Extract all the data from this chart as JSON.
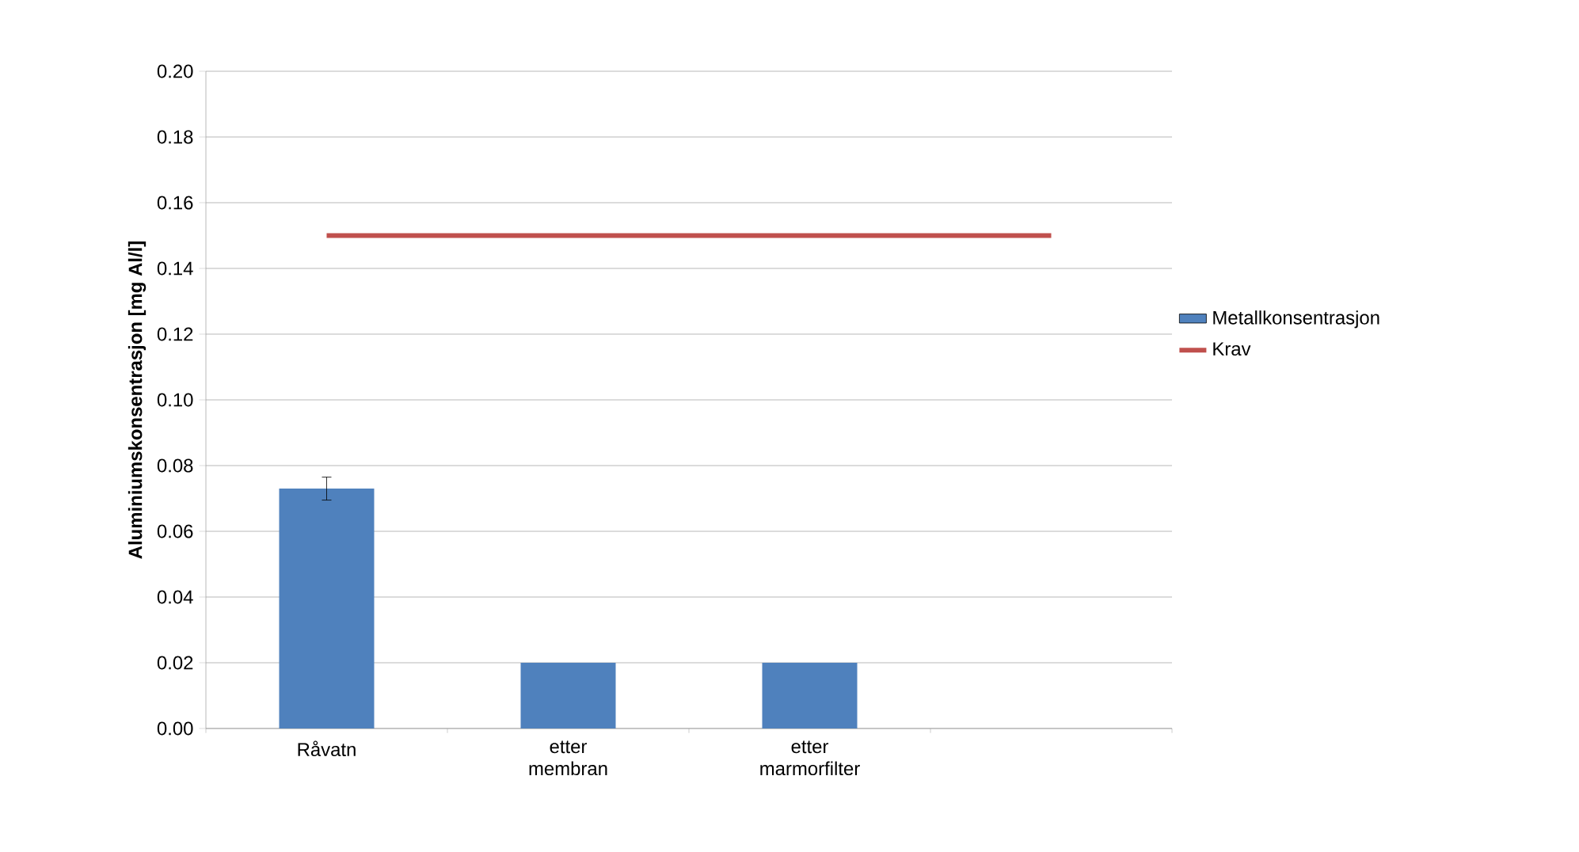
{
  "chart_data": {
    "type": "bar",
    "ylabel": "Aluminiumskonsentrasjon [mg Al/l]",
    "categories": [
      "Råvatn",
      "etter membran",
      "etter marmorfilter",
      null
    ],
    "series": [
      {
        "name": "Metallkonsentrasjon",
        "color": "#4f81bd",
        "values": [
          0.073,
          0.02,
          0.02,
          null
        ],
        "errors": [
          0.0035,
          null,
          null,
          null
        ]
      },
      {
        "name": "Krav",
        "type": "line",
        "color": "#c0504d",
        "values": [
          0.15,
          0.15,
          0.15,
          0.15
        ]
      }
    ],
    "ylim": [
      0,
      0.2
    ],
    "yticks": [
      {
        "value": 0,
        "label": "0.00"
      },
      {
        "value": 0.02,
        "label": "0.02"
      },
      {
        "value": 0.04,
        "label": "0.04"
      },
      {
        "value": 0.06,
        "label": "0.06"
      },
      {
        "value": 0.08,
        "label": "0.08"
      },
      {
        "value": 0.1,
        "label": "0.10"
      },
      {
        "value": 0.12,
        "label": "0.12"
      },
      {
        "value": 0.14,
        "label": "0.14"
      },
      {
        "value": 0.16,
        "label": "0.16"
      },
      {
        "value": 0.18,
        "label": "0.18"
      },
      {
        "value": 0.2,
        "label": "0.20"
      }
    ],
    "grid": "y",
    "legend": "right"
  }
}
